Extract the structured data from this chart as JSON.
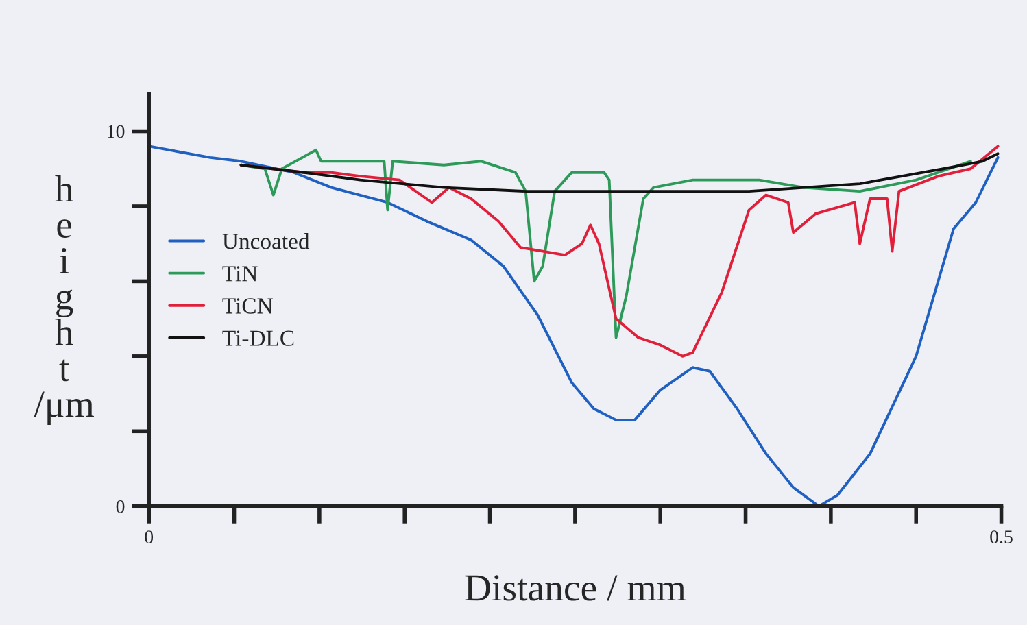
{
  "chart_data": {
    "type": "line",
    "xlabel": "Distance / mm",
    "ylabel": "height /μm",
    "xlim": [
      0,
      0.5
    ],
    "ylim": [
      0,
      11
    ],
    "xticks": [
      {
        "value": 0,
        "label": "0"
      },
      {
        "value": 0.05,
        "label": null
      },
      {
        "value": 0.1,
        "label": null
      },
      {
        "value": 0.15,
        "label": null
      },
      {
        "value": 0.2,
        "label": null
      },
      {
        "value": 0.25,
        "label": null
      },
      {
        "value": 0.3,
        "label": null
      },
      {
        "value": 0.35,
        "label": null
      },
      {
        "value": 0.4,
        "label": null
      },
      {
        "value": 0.45,
        "label": null
      },
      0.5
    ],
    "yticks": [
      {
        "value": 0,
        "label": "0"
      },
      {
        "value": 2,
        "label": null
      },
      {
        "value": 4,
        "label": null
      },
      {
        "value": 6,
        "label": null
      },
      {
        "value": 8,
        "label": null
      },
      10
    ],
    "grid": false,
    "legend": "left",
    "line_style": "solid",
    "marker": "none",
    "series": [
      {
        "name": "Uncoated",
        "color": "#2060c0",
        "x": [
          0,
          0.036,
          0.054,
          0.085,
          0.107,
          0.14,
          0.163,
          0.189,
          0.208,
          0.228,
          0.248,
          0.261,
          0.274,
          0.285,
          0.3,
          0.319,
          0.329,
          0.345,
          0.362,
          0.378,
          0.393,
          0.404,
          0.423,
          0.45,
          0.472,
          0.485,
          0.498
        ],
        "values": [
          9.6,
          9.3,
          9.2,
          8.9,
          8.5,
          8.1,
          7.6,
          7.1,
          6.4,
          5.1,
          3.3,
          2.6,
          2.3,
          2.3,
          3.1,
          3.7,
          3.6,
          2.6,
          1.4,
          0.5,
          0.0,
          0.3,
          1.4,
          4.0,
          7.4,
          8.1,
          9.3
        ]
      },
      {
        "name": "TiN",
        "color": "#2e9a5a",
        "x": [
          0.054,
          0.068,
          0.073,
          0.078,
          0.098,
          0.101,
          0.138,
          0.14,
          0.143,
          0.173,
          0.195,
          0.215,
          0.221,
          0.226,
          0.231,
          0.238,
          0.248,
          0.267,
          0.27,
          0.274,
          0.28,
          0.29,
          0.296,
          0.319,
          0.358,
          0.384,
          0.417,
          0.45,
          0.482
        ],
        "values": [
          9.1,
          9.0,
          8.3,
          9.0,
          9.5,
          9.2,
          9.2,
          7.9,
          9.2,
          9.1,
          9.2,
          8.9,
          8.4,
          6.0,
          6.4,
          8.4,
          8.9,
          8.9,
          8.7,
          4.5,
          5.6,
          8.2,
          8.5,
          8.7,
          8.7,
          8.5,
          8.4,
          8.7,
          9.2
        ]
      },
      {
        "name": "TiCN",
        "color": "#e0203a",
        "x": [
          0.054,
          0.091,
          0.107,
          0.124,
          0.147,
          0.166,
          0.176,
          0.189,
          0.205,
          0.218,
          0.231,
          0.244,
          0.254,
          0.259,
          0.264,
          0.274,
          0.287,
          0.3,
          0.313,
          0.319,
          0.336,
          0.352,
          0.362,
          0.375,
          0.378,
          0.391,
          0.414,
          0.417,
          0.423,
          0.433,
          0.436,
          0.44,
          0.463,
          0.482,
          0.498
        ],
        "values": [
          9.1,
          8.9,
          8.9,
          8.8,
          8.7,
          8.1,
          8.5,
          8.2,
          7.6,
          6.9,
          6.8,
          6.7,
          7.0,
          7.5,
          7.0,
          5.0,
          4.5,
          4.3,
          4.0,
          4.1,
          5.7,
          7.9,
          8.3,
          8.1,
          7.3,
          7.8,
          8.1,
          7.0,
          8.2,
          8.2,
          6.8,
          8.4,
          8.8,
          9.0,
          9.6
        ]
      },
      {
        "name": "Ti-DLC",
        "color": "#111111",
        "x": [
          0.054,
          0.091,
          0.124,
          0.173,
          0.221,
          0.287,
          0.352,
          0.417,
          0.466,
          0.489,
          0.498
        ],
        "values": [
          9.1,
          8.9,
          8.7,
          8.5,
          8.4,
          8.4,
          8.4,
          8.6,
          9.0,
          9.2,
          9.4
        ]
      }
    ]
  }
}
